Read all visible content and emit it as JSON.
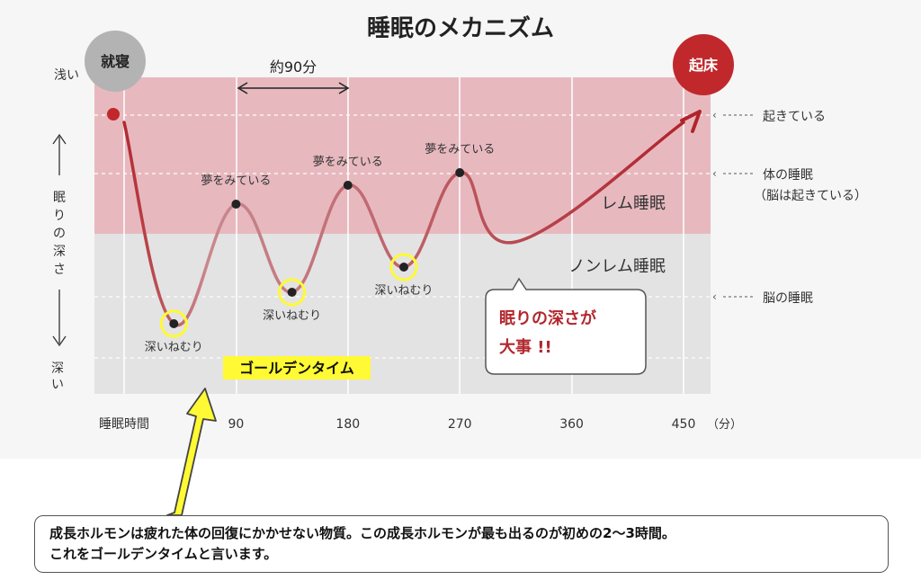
{
  "title": "睡眠のメカニズム",
  "start_label": "就寝",
  "end_label": "起床",
  "axis": {
    "shallow": "浅い",
    "depth_label": "眠りの深さ",
    "deep": "深い",
    "time_label": "睡眠時間",
    "unit": "（分）"
  },
  "cycle_label": "約90分",
  "zones": {
    "rem": "レム睡眠",
    "nonrem": "ノンレム睡眠"
  },
  "right_labels": {
    "awake": "起きている",
    "body_sleep_1": "体の睡眠",
    "body_sleep_2": "（脳は起きている）",
    "brain_sleep": "脳の睡眠"
  },
  "callout": {
    "line1": "眠りの深さが",
    "line2": "大事 !!"
  },
  "golden_time": "ゴールデンタイム",
  "caption": {
    "line1": "成長ホルモンは疲れた体の回復にかかせない物質。この成長ホルモンが最も出るのが初めの2～3時間。",
    "line2": "これをゴールデンタイムと言います。"
  },
  "colors": {
    "rem_zone": "#e7b9bf",
    "nonrem_zone": "#e3e3e3",
    "curve": "#b2282e",
    "highlight": "#fffa33",
    "start_circle": "#b3b3b3",
    "end_circle": "#c0282c"
  },
  "chart_data": {
    "type": "line",
    "xlabel": "睡眠時間",
    "ylabel": "眠りの深さ",
    "x_unit": "分",
    "xlim": [
      0,
      450
    ],
    "xticks": [
      90,
      180,
      270,
      360,
      450
    ],
    "y_scale_note": "0 = 浅い (awake), 4 = 深い",
    "ylim": [
      0,
      4
    ],
    "curve": [
      {
        "x": 0,
        "y": 0.3
      },
      {
        "x": 40,
        "y": 3.5
      },
      {
        "x": 90,
        "y": 1.6
      },
      {
        "x": 135,
        "y": 3.0
      },
      {
        "x": 180,
        "y": 1.3
      },
      {
        "x": 225,
        "y": 2.6
      },
      {
        "x": 270,
        "y": 1.1
      },
      {
        "x": 315,
        "y": 2.2
      },
      {
        "x": 450,
        "y": 0.3
      }
    ],
    "annotations": [
      {
        "x": 90,
        "text": "夢をみている"
      },
      {
        "x": 180,
        "text": "夢をみている"
      },
      {
        "x": 270,
        "text": "夢をみている"
      },
      {
        "x": 40,
        "text": "深いねむり"
      },
      {
        "x": 135,
        "text": "深いねむり"
      },
      {
        "x": 225,
        "text": "深いねむり"
      }
    ]
  }
}
